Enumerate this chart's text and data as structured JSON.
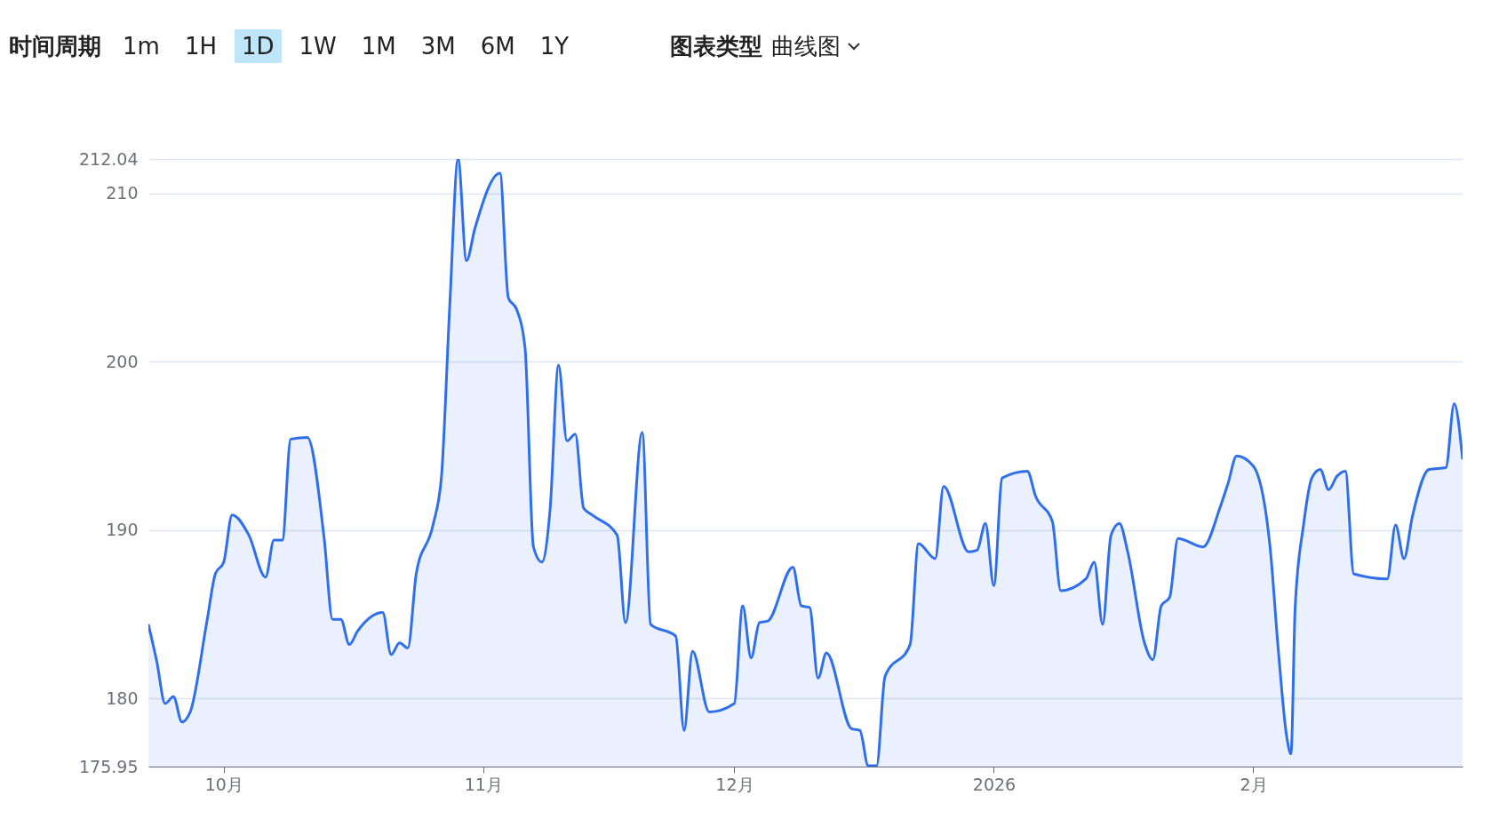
{
  "chart_data": {
    "type": "area",
    "annotations": [
      "时间周期",
      "1m",
      "1H",
      "1D",
      "1W",
      "1M",
      "3M",
      "6M",
      "1Y",
      "图表类型",
      "曲线图"
    ],
    "x": [
      "2025-09-22",
      "2025-09-23",
      "2025-09-24",
      "2025-09-25",
      "2025-09-26",
      "2025-09-27",
      "2025-09-29",
      "2025-09-30",
      "2025-10-01",
      "2025-10-02",
      "2025-10-04",
      "2025-10-06",
      "2025-10-07",
      "2025-10-08",
      "2025-10-09",
      "2025-10-11",
      "2025-10-13",
      "2025-10-14",
      "2025-10-15",
      "2025-10-16",
      "2025-10-17",
      "2025-10-20",
      "2025-10-21",
      "2025-10-22",
      "2025-10-23",
      "2025-10-24",
      "2025-10-26",
      "2025-10-27",
      "2025-10-28",
      "2025-10-29",
      "2025-10-30",
      "2025-10-31",
      "2025-11-03",
      "2025-11-04",
      "2025-11-05",
      "2025-11-06",
      "2025-11-07",
      "2025-11-08",
      "2025-11-09",
      "2025-11-10",
      "2025-11-11",
      "2025-11-12",
      "2025-11-13",
      "2025-11-14",
      "2025-11-17",
      "2025-11-18",
      "2025-11-20",
      "2025-11-21",
      "2025-11-24",
      "2025-11-25",
      "2025-11-26",
      "2025-11-28",
      "2025-12-01",
      "2025-12-02",
      "2025-12-03",
      "2025-12-04",
      "2025-12-05",
      "2025-12-08",
      "2025-12-09",
      "2025-12-10",
      "2025-12-11",
      "2025-12-12",
      "2025-12-15",
      "2025-12-16",
      "2025-12-17",
      "2025-12-18",
      "2025-12-19",
      "2025-12-22",
      "2025-12-23",
      "2025-12-25",
      "2025-12-26",
      "2025-12-29",
      "2025-12-30",
      "2025-12-31",
      "2026-01-01",
      "2026-01-02",
      "2026-01-05",
      "2026-01-06",
      "2026-01-08",
      "2026-01-09",
      "2026-01-12",
      "2026-01-13",
      "2026-01-14",
      "2026-01-15",
      "2026-01-16",
      "2026-01-17",
      "2026-01-19",
      "2026-01-20",
      "2026-01-21",
      "2026-01-22",
      "2026-01-23",
      "2026-01-26",
      "2026-01-28",
      "2026-01-29",
      "2026-01-30",
      "2026-02-01",
      "2026-02-03",
      "2026-02-04",
      "2026-02-05",
      "2026-02-05T12:00",
      "2026-02-06",
      "2026-02-07",
      "2026-02-08",
      "2026-02-09",
      "2026-02-10",
      "2026-02-11",
      "2026-02-12",
      "2026-02-13",
      "2026-02-17",
      "2026-02-18",
      "2026-02-19",
      "2026-02-20",
      "2026-02-22",
      "2026-02-24",
      "2026-02-25",
      "2026-02-26"
    ],
    "series": [
      {
        "color": "#2f6fec",
        "values": [
          184.4,
          182.2,
          179.7,
          180.1,
          178.6,
          179.2,
          184.6,
          187.4,
          188.1,
          190.9,
          189.7,
          187.2,
          189.4,
          189.4,
          195.4,
          195.5,
          189.5,
          184.7,
          184.7,
          183.2,
          184.0,
          185.1,
          182.6,
          183.3,
          183.0,
          187.4,
          190.3,
          193.1,
          203.3,
          212.04,
          206.0,
          207.9,
          211.2,
          203.8,
          203.1,
          200.8,
          189.0,
          188.1,
          191.3,
          199.8,
          195.3,
          195.7,
          191.3,
          190.9,
          189.7,
          184.5,
          195.8,
          184.4,
          183.7,
          178.1,
          182.8,
          179.2,
          179.7,
          185.5,
          182.4,
          184.5,
          184.6,
          187.8,
          185.5,
          185.4,
          181.2,
          182.7,
          178.2,
          178.1,
          176.0,
          176.0,
          181.3,
          183.2,
          189.2,
          188.3,
          192.6,
          188.7,
          188.8,
          190.4,
          186.7,
          193.1,
          193.5,
          192.0,
          190.5,
          186.4,
          187.1,
          188.1,
          184.4,
          189.7,
          190.4,
          188.7,
          183.3,
          182.3,
          185.5,
          186.0,
          189.5,
          189.0,
          191.3,
          192.8,
          194.4,
          193.8,
          189.0,
          182.8,
          177.7,
          176.7,
          185.4,
          190.3,
          193.1,
          193.6,
          192.4,
          193.2,
          193.5,
          187.4,
          187.1,
          190.3,
          188.3,
          190.8,
          193.6,
          193.7,
          197.5,
          194.2
        ]
      }
    ],
    "xlim": [
      "2025-09-22",
      "2026-02-26"
    ],
    "xticks": [
      {
        "value": "2025-10-01",
        "label": "10月"
      },
      {
        "value": "2025-11-01",
        "label": "11月"
      },
      {
        "value": "2025-12-01",
        "label": "12月"
      },
      {
        "value": "2026-01-01",
        "label": "2026"
      },
      {
        "value": "2026-02-01",
        "label": "2月"
      }
    ],
    "ylim": [
      175.95,
      212.04
    ],
    "yticks": [
      175.95,
      180,
      190,
      200,
      210,
      212.04
    ],
    "grid": "y"
  }
}
